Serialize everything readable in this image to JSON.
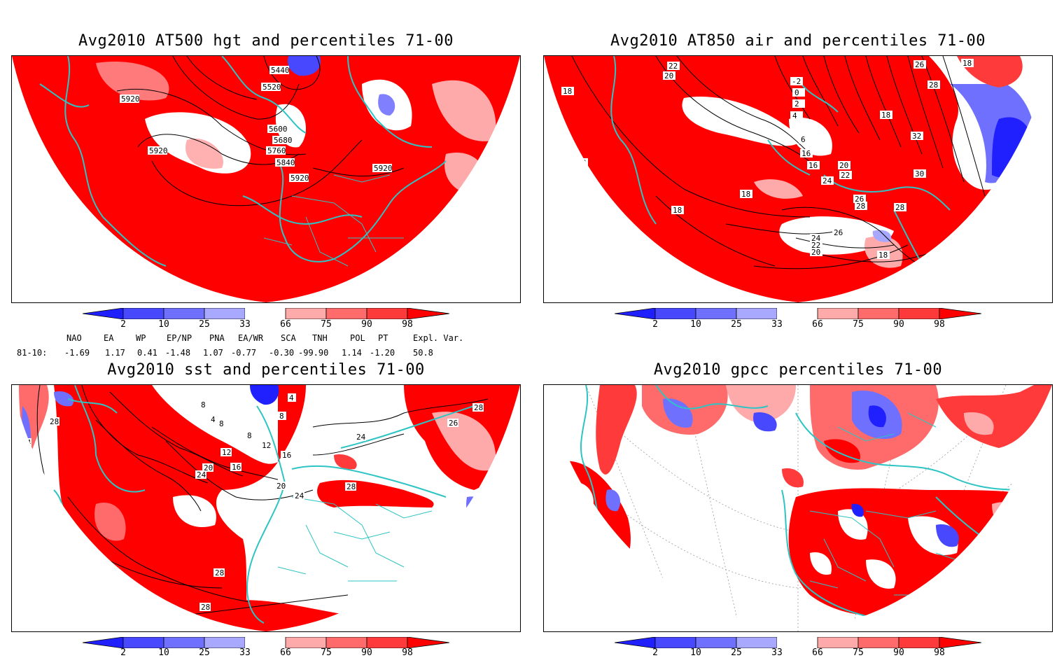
{
  "panels": [
    {
      "title": "Avg2010 AT500 hgt and percentiles 71-00",
      "contour_labels": [
        "5440",
        "5520",
        "5600",
        "5680",
        "5760",
        "5840",
        "5920",
        "5920",
        "5920",
        "5920"
      ]
    },
    {
      "title": "Avg2010 AT850 air and percentiles 71-00",
      "contour_labels": [
        "22",
        "20",
        "18",
        "18",
        "18",
        "18",
        "-2",
        "0",
        "2",
        "4",
        "6",
        "16",
        "16",
        "18",
        "20",
        "22",
        "24",
        "26",
        "26",
        "28",
        "28",
        "28",
        "30",
        "32",
        "26",
        "24",
        "22",
        "20",
        "18",
        "18",
        "20"
      ]
    },
    {
      "title": "Avg2010 sst and percentiles 71-00",
      "contour_labels": [
        "28",
        "24",
        "8",
        "4",
        "8",
        "12",
        "16",
        "20",
        "24",
        "4",
        "8",
        "12",
        "8",
        "16",
        "20",
        "24",
        "24",
        "28",
        "26",
        "28",
        "28",
        "28",
        "28"
      ]
    },
    {
      "title": "Avg2010 gpcc percentiles 71-00",
      "contour_labels": []
    }
  ],
  "colorbar": {
    "labels": [
      "2",
      "10",
      "25",
      "33",
      "66",
      "75",
      "90",
      "98"
    ],
    "colors": [
      "#2020ff",
      "#4848ff",
      "#7070ff",
      "#a8a8ff",
      "#ffffff",
      "#ffaaaa",
      "#ff6b6b",
      "#ff3a3a",
      "#ff0000"
    ]
  },
  "indices": {
    "header": [
      "NAO",
      "EA",
      "WP",
      "EP/NP",
      "PNA",
      "EA/WR",
      "SCA",
      "TNH",
      "POL",
      "PT",
      "Expl. Var."
    ],
    "row_label": "81-10:",
    "values": [
      "-1.69",
      "1.17",
      "0.41",
      "-1.48",
      "1.07",
      "-0.77",
      "-0.30",
      "-99.90",
      "1.14",
      "-1.20",
      "50.8"
    ]
  },
  "colors": {
    "coast": "#2ec4c4",
    "red": "#ff0000",
    "blue": "#2020ff"
  }
}
